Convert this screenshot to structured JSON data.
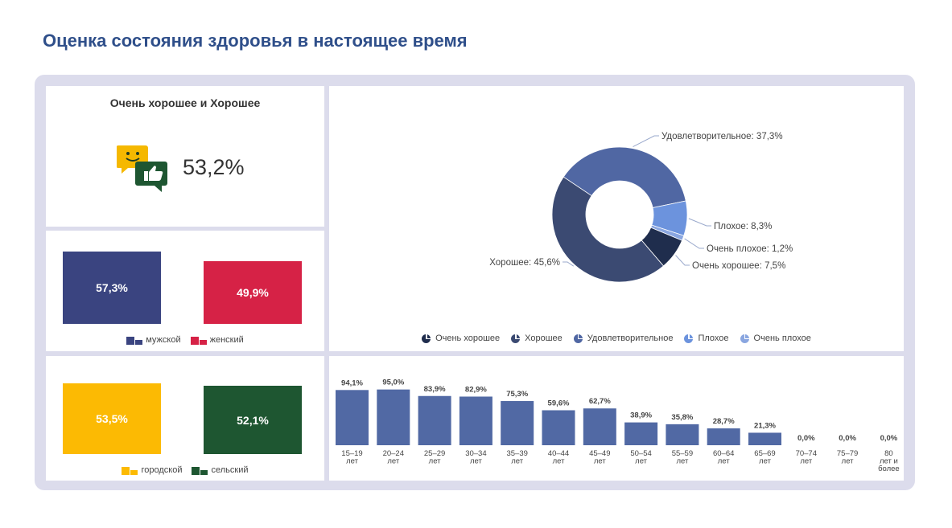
{
  "page": {
    "title": "Оценка состояния здоровья в настоящее время"
  },
  "kpi": {
    "title": "Очень хорошее и Хорошее",
    "value": "53,2%"
  },
  "gender": {
    "male": {
      "label": "мужской",
      "value": "57,3%",
      "number": 57.3,
      "color": "#3a4480"
    },
    "female": {
      "label": "женский",
      "value": "49,9%",
      "number": 49.9,
      "color": "#d62246"
    }
  },
  "settlement": {
    "urban": {
      "label": "городской",
      "value": "53,5%",
      "number": 53.5,
      "color": "#fcba03"
    },
    "rural": {
      "label": "сельский",
      "value": "52,1%",
      "number": 52.1,
      "color": "#1e5631"
    }
  },
  "chart_data": [
    {
      "type": "pie",
      "title": "",
      "slices": [
        {
          "label": "Удовлетворительное",
          "value": 37.3,
          "text": "37,3%",
          "color": "#5067a3"
        },
        {
          "label": "Плохое",
          "value": 8.3,
          "text": "8,3%",
          "color": "#6c93dd"
        },
        {
          "label": "Очень плохое",
          "value": 1.2,
          "text": "1,2%",
          "color": "#8aa6e0"
        },
        {
          "label": "Очень хорошее",
          "value": 7.5,
          "text": "7,5%",
          "color": "#1f2d4d"
        },
        {
          "label": "Хорошее",
          "value": 45.6,
          "text": "45,6%",
          "color": "#3b4a72"
        }
      ],
      "legend": [
        {
          "label": "Очень хорошее",
          "color": "#1f2d4d"
        },
        {
          "label": "Хорошее",
          "color": "#3b4a72"
        },
        {
          "label": "Удовлетворительное",
          "color": "#5067a3"
        },
        {
          "label": "Плохое",
          "color": "#6c93dd"
        },
        {
          "label": "Очень плохое",
          "color": "#8aa6e0"
        }
      ]
    },
    {
      "type": "bar",
      "title": "",
      "categories": [
        "15–19 лет",
        "20–24 лет",
        "25–29 лет",
        "30–34 лет",
        "35–39 лет",
        "40–44 лет",
        "45–49 лет",
        "50–54 лет",
        "55–59 лет",
        "60–64 лет",
        "65–69 лет",
        "70–74 лет",
        "75–79 лет",
        "80 лет и более"
      ],
      "category_lines": [
        [
          "15–19",
          "лет"
        ],
        [
          "20–24",
          "лет"
        ],
        [
          "25–29",
          "лет"
        ],
        [
          "30–34",
          "лет"
        ],
        [
          "35–39",
          "лет"
        ],
        [
          "40–44",
          "лет"
        ],
        [
          "45–49",
          "лет"
        ],
        [
          "50–54",
          "лет"
        ],
        [
          "55–59",
          "лет"
        ],
        [
          "60–64",
          "лет"
        ],
        [
          "65–69",
          "лет"
        ],
        [
          "70–74",
          "лет"
        ],
        [
          "75–79",
          "лет"
        ],
        [
          "80",
          "лет и",
          "более"
        ]
      ],
      "values": [
        94.1,
        95.0,
        83.9,
        82.9,
        75.3,
        59.6,
        62.7,
        38.9,
        35.8,
        28.7,
        21.3,
        0.0,
        0.0,
        0.0
      ],
      "labels": [
        "94,1%",
        "95,0%",
        "83,9%",
        "82,9%",
        "75,3%",
        "59,6%",
        "62,7%",
        "38,9%",
        "35,8%",
        "28,7%",
        "21,3%",
        "0,0%",
        "0,0%",
        "0,0%"
      ],
      "color": "#5169a4",
      "ylim": [
        0,
        100
      ]
    }
  ]
}
